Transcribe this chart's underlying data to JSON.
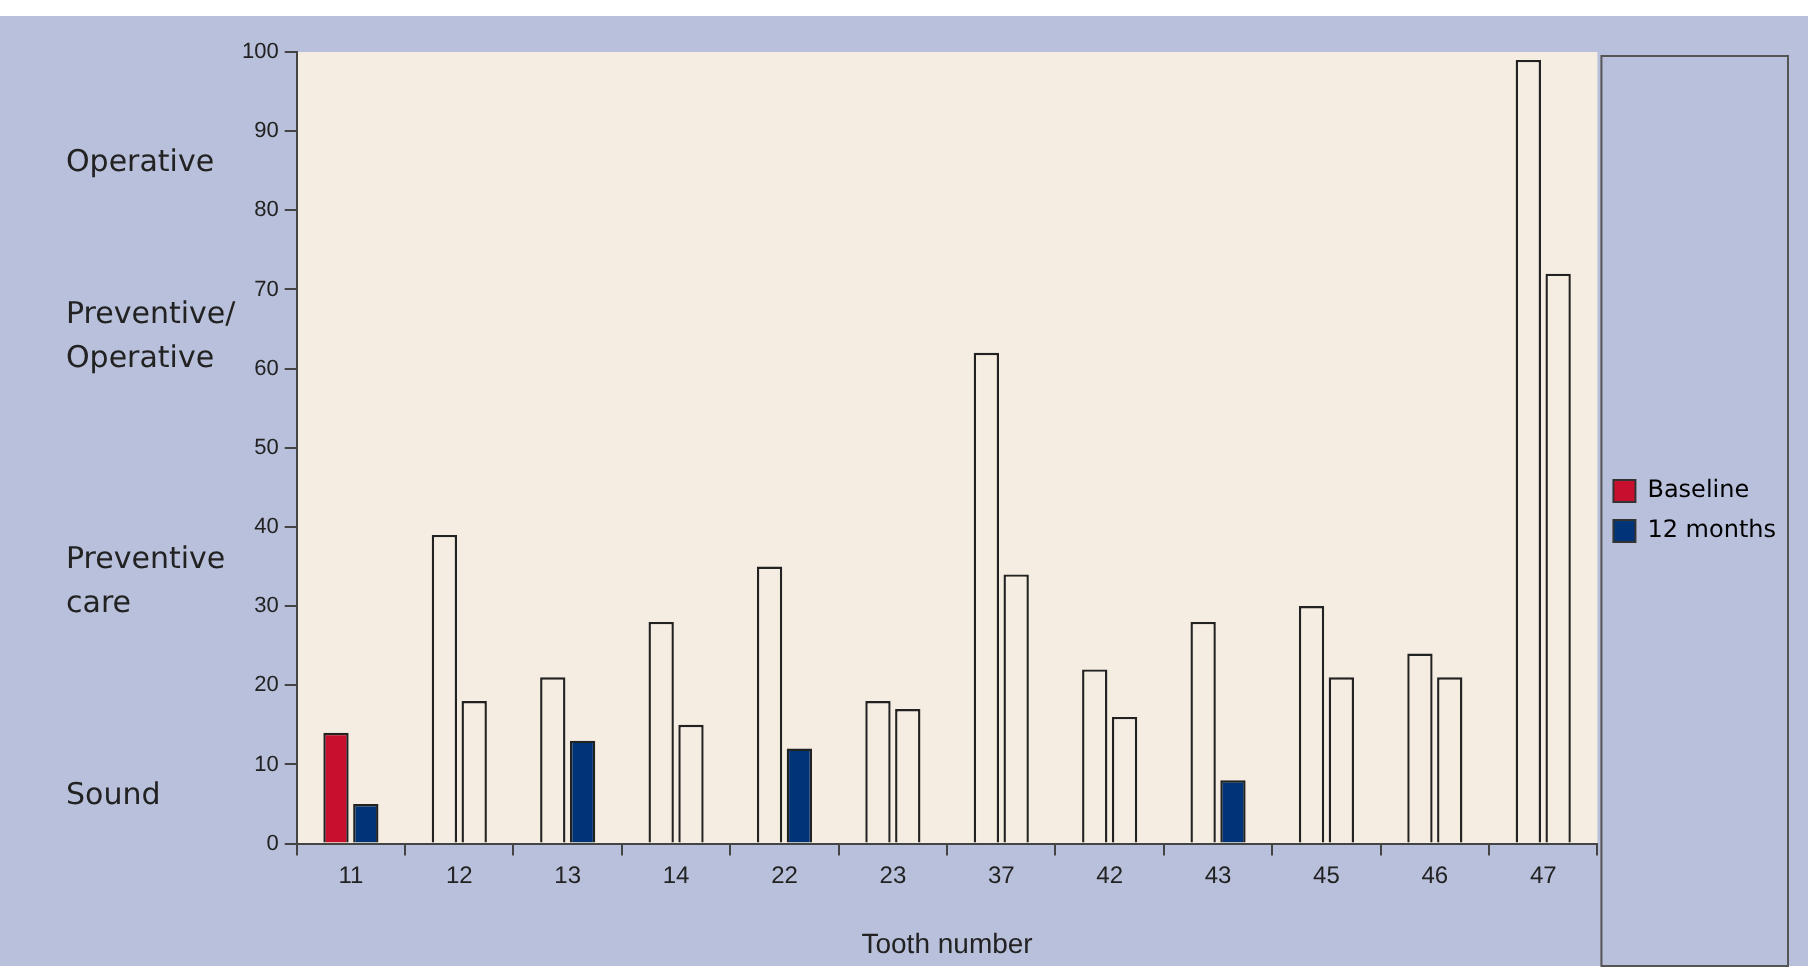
{
  "chart_data": {
    "type": "bar",
    "xlabel": "Tooth number",
    "categories": [
      "11",
      "12",
      "13",
      "14",
      "22",
      "23",
      "37",
      "42",
      "43",
      "45",
      "46",
      "47"
    ],
    "series": [
      {
        "name": "Baseline",
        "color": "#c8102e",
        "colors": [
          "#c8102e",
          "#f5ede2",
          "#f5ede2",
          "#f5ede2",
          "#f5ede2",
          "#f5ede2",
          "#f5ede2",
          "#f5ede2",
          "#f5ede2",
          "#f5ede2",
          "#f5ede2",
          "#f5ede2"
        ],
        "values": [
          14,
          39,
          21,
          28,
          35,
          18,
          62,
          22,
          28,
          30,
          24,
          99
        ]
      },
      {
        "name": "12 months",
        "color": "#003478",
        "colors": [
          "#003478",
          "#f5ede2",
          "#003478",
          "#f5ede2",
          "#003478",
          "#f5ede2",
          "#f5ede2",
          "#f5ede2",
          "#003478",
          "#f5ede2",
          "#f5ede2",
          "#f5ede2"
        ],
        "values": [
          5,
          18,
          13,
          15,
          12,
          17,
          34,
          16,
          8,
          21,
          21,
          72
        ]
      }
    ],
    "ylim": [
      0,
      100
    ],
    "yticks": [
      0,
      10,
      20,
      30,
      40,
      50,
      60,
      70,
      80,
      90,
      100
    ],
    "grid": false,
    "legend": "right",
    "annotations": [
      "Operative",
      "Preventive/ Operative",
      "Preventive care",
      "Sound"
    ]
  }
}
